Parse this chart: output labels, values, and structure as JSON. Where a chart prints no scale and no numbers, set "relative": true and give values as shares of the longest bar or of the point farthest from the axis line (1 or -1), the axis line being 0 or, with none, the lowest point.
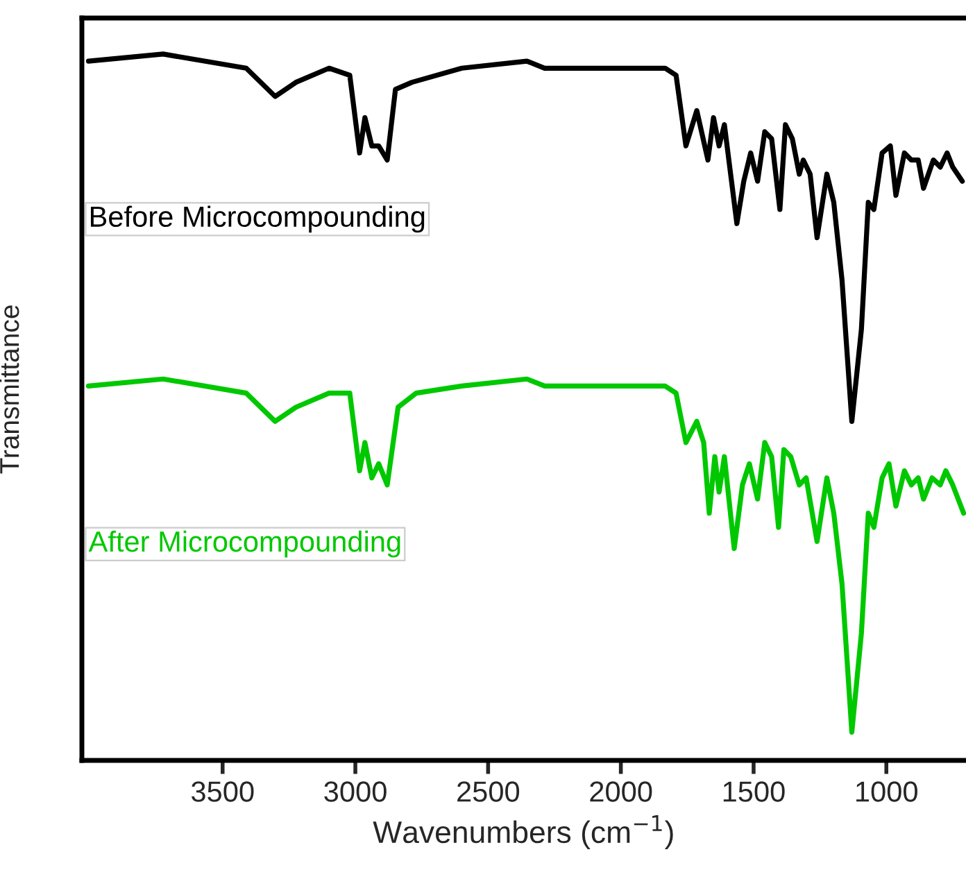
{
  "chart_data": {
    "type": "line",
    "relative": true,
    "xlabel": "Wavenumbers (cm$^{−1}$)",
    "ylabel": "Transmittance",
    "xlim": [
      4030,
      700
    ],
    "xticks": [
      3500,
      3000,
      2500,
      2000,
      1500,
      1000
    ],
    "grid": false,
    "legend": false,
    "series": [
      {
        "name": "Before Microcompounding",
        "color": "#000000",
        "x": [
          4005,
          3724,
          3411,
          3302,
          3224,
          3099,
          3021,
          2984,
          2964,
          2938,
          2912,
          2880,
          2849,
          2787,
          2599,
          2354,
          2287,
          1833,
          1792,
          1755,
          1714,
          1672,
          1651,
          1630,
          1610,
          1563,
          1537,
          1511,
          1485,
          1458,
          1432,
          1401,
          1380,
          1354,
          1328,
          1313,
          1287,
          1261,
          1224,
          1198,
          1167,
          1130,
          1094,
          1068,
          1047,
          1016,
          985,
          964,
          932,
          906,
          880,
          860,
          823,
          797,
          771,
          750,
          714
        ],
        "values": [
          0.99,
          1.0,
          0.98,
          0.94,
          0.96,
          0.98,
          0.97,
          0.86,
          0.91,
          0.87,
          0.87,
          0.85,
          0.95,
          0.96,
          0.98,
          0.99,
          0.98,
          0.98,
          0.97,
          0.87,
          0.92,
          0.85,
          0.91,
          0.87,
          0.9,
          0.76,
          0.82,
          0.86,
          0.82,
          0.89,
          0.88,
          0.78,
          0.9,
          0.88,
          0.83,
          0.85,
          0.83,
          0.74,
          0.83,
          0.79,
          0.68,
          0.48,
          0.61,
          0.79,
          0.78,
          0.86,
          0.87,
          0.8,
          0.86,
          0.85,
          0.85,
          0.81,
          0.85,
          0.84,
          0.86,
          0.84,
          0.82
        ]
      },
      {
        "name": "After Microcompounding",
        "color": "#00c800",
        "x": [
          4005,
          3724,
          3411,
          3302,
          3224,
          3099,
          3021,
          2984,
          2964,
          2938,
          2912,
          2880,
          2839,
          2771,
          2599,
          2354,
          2287,
          1833,
          1792,
          1755,
          1714,
          1688,
          1667,
          1646,
          1630,
          1610,
          1573,
          1542,
          1516,
          1485,
          1458,
          1432,
          1406,
          1386,
          1360,
          1328,
          1302,
          1261,
          1224,
          1198,
          1167,
          1130,
          1094,
          1068,
          1047,
          1016,
          990,
          964,
          932,
          906,
          880,
          860,
          828,
          797,
          776,
          750,
          709
        ],
        "values": [
          0.53,
          0.54,
          0.52,
          0.48,
          0.5,
          0.52,
          0.52,
          0.41,
          0.45,
          0.4,
          0.42,
          0.39,
          0.5,
          0.52,
          0.53,
          0.54,
          0.53,
          0.53,
          0.52,
          0.45,
          0.48,
          0.45,
          0.35,
          0.43,
          0.38,
          0.43,
          0.3,
          0.39,
          0.42,
          0.37,
          0.45,
          0.43,
          0.33,
          0.44,
          0.43,
          0.39,
          0.4,
          0.31,
          0.4,
          0.35,
          0.25,
          0.04,
          0.18,
          0.35,
          0.33,
          0.4,
          0.42,
          0.36,
          0.41,
          0.39,
          0.4,
          0.37,
          0.4,
          0.39,
          0.41,
          0.39,
          0.35
        ]
      }
    ]
  }
}
